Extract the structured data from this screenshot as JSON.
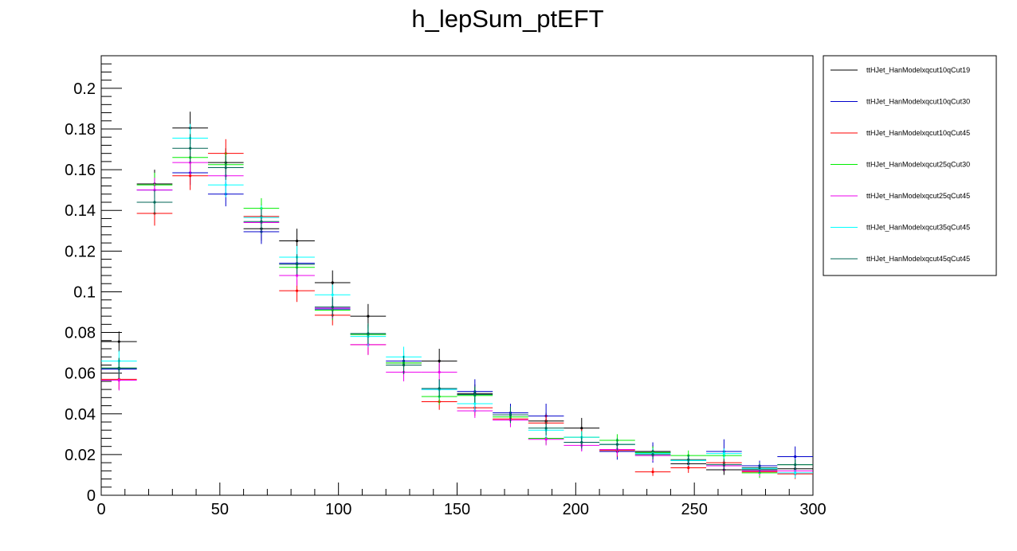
{
  "chart_data": {
    "type": "scatter",
    "title": "h_lepSum_ptEFT",
    "xlabel": "",
    "ylabel": "",
    "xlim": [
      0,
      300
    ],
    "ylim": [
      0,
      0.216
    ],
    "x_ticks": [
      0,
      50,
      100,
      150,
      200,
      250,
      300
    ],
    "y_ticks": [
      0,
      0.02,
      0.04,
      0.06,
      0.08,
      0.1,
      0.12,
      0.14,
      0.16,
      0.18,
      0.2
    ],
    "x_tick_labels": [
      "0",
      "50",
      "100",
      "150",
      "200",
      "250",
      "300"
    ],
    "y_tick_labels": [
      "0",
      "0.02",
      "0.04",
      "0.06",
      "0.08",
      "0.1",
      "0.12",
      "0.14",
      "0.16",
      "0.18",
      "0.2"
    ],
    "bin_width": 15,
    "x": [
      7.5,
      22.5,
      37.5,
      52.5,
      67.5,
      82.5,
      97.5,
      112.5,
      127.5,
      142.5,
      157.5,
      172.5,
      187.5,
      202.5,
      217.5,
      232.5,
      247.5,
      262.5,
      277.5,
      292.5
    ],
    "grid": false,
    "legend_position": "right",
    "series": [
      {
        "name": "ttHJet_HanModelxqcut10qCut19",
        "color": "#000000",
        "values": [
          0.0755,
          0.153,
          0.1805,
          0.1635,
          0.131,
          0.125,
          0.1045,
          0.088,
          0.065,
          0.066,
          0.05,
          0.0395,
          0.0365,
          0.033,
          0.025,
          0.0215,
          0.0155,
          0.0125,
          0.0125,
          0.013
        ],
        "errors": [
          0.005,
          0.007,
          0.008,
          0.007,
          0.006,
          0.006,
          0.006,
          0.006,
          0.005,
          0.006,
          0.0045,
          0.004,
          0.004,
          0.005,
          0.003,
          0.003,
          0.0025,
          0.0025,
          0.0025,
          0.0025
        ]
      },
      {
        "name": "ttHJet_HanModelxqcut10qCut30",
        "color": "#0000cc",
        "values": [
          0.062,
          0.15,
          0.1585,
          0.148,
          0.1295,
          0.114,
          0.0915,
          0.079,
          0.066,
          0.052,
          0.051,
          0.0405,
          0.039,
          0.026,
          0.0215,
          0.021,
          0.017,
          0.0215,
          0.0145,
          0.019
        ],
        "errors": [
          0.005,
          0.006,
          0.006,
          0.006,
          0.006,
          0.005,
          0.005,
          0.005,
          0.005,
          0.005,
          0.006,
          0.0045,
          0.006,
          0.004,
          0.004,
          0.005,
          0.003,
          0.006,
          0.0025,
          0.005
        ]
      },
      {
        "name": "ttHJet_HanModelxqcut10qCut45",
        "color": "#ff0000",
        "values": [
          0.057,
          0.1385,
          0.157,
          0.168,
          0.137,
          0.1005,
          0.0885,
          0.074,
          0.064,
          0.046,
          0.043,
          0.0375,
          0.0355,
          0.0285,
          0.022,
          0.0115,
          0.0135,
          0.016,
          0.0115,
          0.0105
        ],
        "errors": [
          0.005,
          0.006,
          0.007,
          0.007,
          0.006,
          0.0055,
          0.005,
          0.005,
          0.005,
          0.004,
          0.004,
          0.004,
          0.004,
          0.004,
          0.003,
          0.002,
          0.0025,
          0.0025,
          0.0025,
          0.0025
        ]
      },
      {
        "name": "ttHJet_HanModelxqcut25qCut30",
        "color": "#00ee00",
        "values": [
          0.0625,
          0.1525,
          0.166,
          0.1625,
          0.141,
          0.112,
          0.091,
          0.079,
          0.065,
          0.0485,
          0.049,
          0.0385,
          0.028,
          0.0285,
          0.027,
          0.021,
          0.0195,
          0.0195,
          0.011,
          0.015
        ],
        "errors": [
          0.005,
          0.006,
          0.006,
          0.006,
          0.005,
          0.005,
          0.005,
          0.005,
          0.005,
          0.004,
          0.004,
          0.004,
          0.003,
          0.003,
          0.003,
          0.003,
          0.0025,
          0.0025,
          0.0025,
          0.0025
        ]
      },
      {
        "name": "ttHJet_HanModelxqcut25qCut45",
        "color": "#ee00ee",
        "values": [
          0.0565,
          0.15,
          0.1635,
          0.157,
          0.134,
          0.108,
          0.092,
          0.074,
          0.0605,
          0.0605,
          0.0415,
          0.037,
          0.0275,
          0.0245,
          0.0225,
          0.0195,
          0.017,
          0.0145,
          0.012,
          0.012
        ],
        "errors": [
          0.005,
          0.006,
          0.006,
          0.006,
          0.005,
          0.005,
          0.005,
          0.005,
          0.0045,
          0.0045,
          0.0035,
          0.0035,
          0.003,
          0.003,
          0.003,
          0.0025,
          0.0025,
          0.0025,
          0.0025,
          0.0025
        ]
      },
      {
        "name": "ttHJet_HanModelxqcut35qCut45",
        "color": "#00ffff",
        "values": [
          0.066,
          0.144,
          0.1755,
          0.1525,
          0.1365,
          0.117,
          0.0985,
          0.078,
          0.068,
          0.052,
          0.045,
          0.0395,
          0.032,
          0.0285,
          0.025,
          0.0205,
          0.017,
          0.0205,
          0.013,
          0.011
        ],
        "errors": [
          0.005,
          0.006,
          0.007,
          0.006,
          0.006,
          0.0055,
          0.005,
          0.005,
          0.005,
          0.0045,
          0.004,
          0.004,
          0.0035,
          0.003,
          0.003,
          0.0025,
          0.0025,
          0.0025,
          0.0025,
          0.0025
        ]
      },
      {
        "name": "ttHJet_HanModelxqcut45qCut45",
        "color": "#006655",
        "values": [
          0.0625,
          0.144,
          0.1705,
          0.161,
          0.1345,
          0.1135,
          0.0925,
          0.0795,
          0.064,
          0.0525,
          0.0495,
          0.0395,
          0.033,
          0.026,
          0.025,
          0.02,
          0.0175,
          0.015,
          0.0135,
          0.015
        ],
        "errors": [
          0.005,
          0.006,
          0.007,
          0.006,
          0.006,
          0.005,
          0.005,
          0.005,
          0.0045,
          0.0045,
          0.004,
          0.004,
          0.0035,
          0.003,
          0.003,
          0.0025,
          0.0025,
          0.0025,
          0.0025,
          0.0025
        ]
      }
    ]
  }
}
